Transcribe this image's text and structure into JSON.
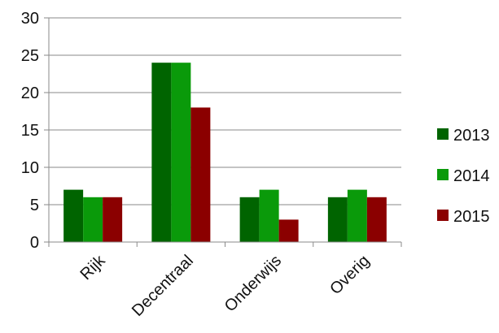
{
  "chart_data": {
    "type": "bar",
    "categories": [
      "Rijk",
      "Decentraal",
      "Onderwijs",
      "Overig"
    ],
    "series": [
      {
        "name": "2013",
        "color": "#006400",
        "values": [
          7,
          24,
          6,
          6
        ]
      },
      {
        "name": "2014",
        "color": "#0A9A0A",
        "values": [
          6,
          24,
          7,
          7
        ]
      },
      {
        "name": "2015",
        "color": "#8B0000",
        "values": [
          6,
          18,
          3,
          6
        ]
      }
    ],
    "title": "",
    "xlabel": "",
    "ylabel": "",
    "ylim": [
      0,
      30
    ],
    "yticks": [
      0,
      5,
      10,
      15,
      20,
      25,
      30
    ],
    "grid": true,
    "legend_position": "right"
  }
}
